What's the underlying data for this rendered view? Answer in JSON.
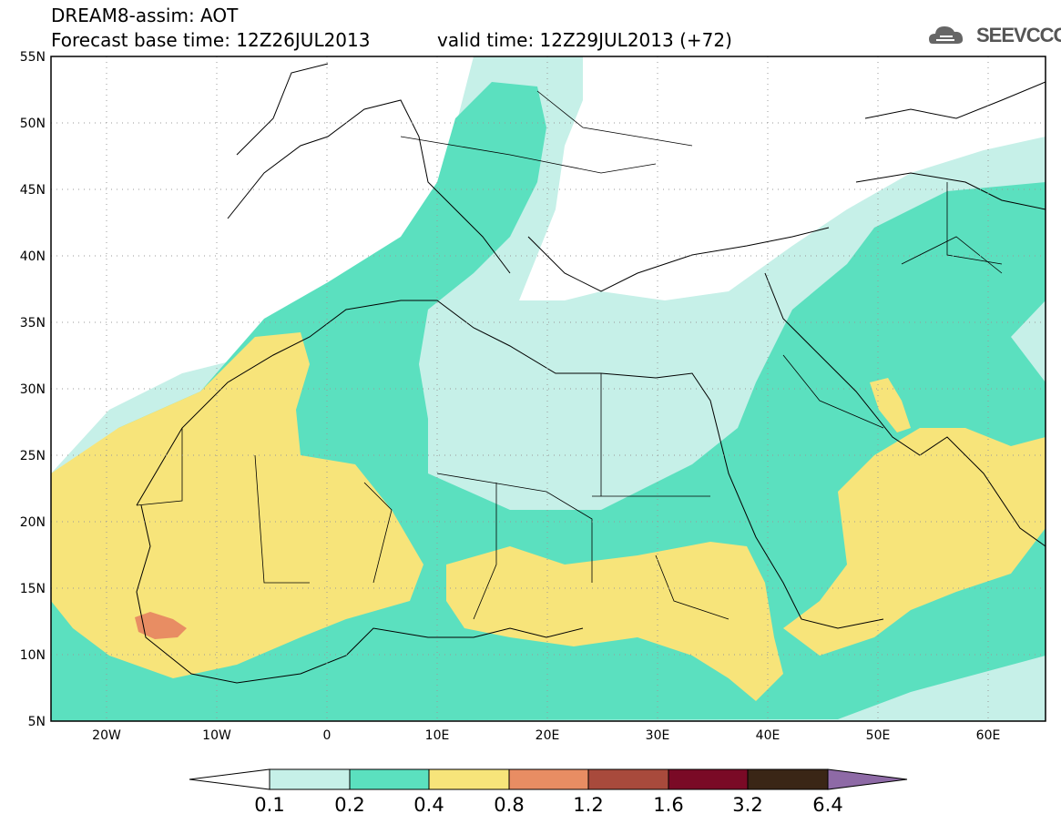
{
  "header": {
    "line1": "DREAM8-assim: AOT",
    "line2": "Forecast base time: 12Z26JUL2013",
    "line3": "valid time: 12Z29JUL2013 (+72)",
    "logo": "SEEVCCC"
  },
  "map": {
    "lat_labels": [
      "55N",
      "50N",
      "45N",
      "40N",
      "35N",
      "30N",
      "25N",
      "20N",
      "15N",
      "10N",
      "5N"
    ],
    "lon_labels": [
      "20W",
      "10W",
      "0",
      "10E",
      "20E",
      "30E",
      "40E",
      "50E",
      "60E"
    ],
    "lat_range": [
      5,
      55
    ],
    "lon_range": [
      -25,
      65
    ],
    "grid": "dotted"
  },
  "colorbar": {
    "labels": [
      "0.1",
      "0.2",
      "0.4",
      "0.8",
      "1.2",
      "1.6",
      "3.2",
      "6.4"
    ],
    "colors": [
      "#ffffff",
      "#c6f0e8",
      "#5be0bf",
      "#f7e47a",
      "#e88d63",
      "#a84a3c",
      "#7a0a26",
      "#3a2616",
      "#8e6aa6"
    ]
  },
  "colors": {
    "low": "#c6f0e8",
    "mid": "#5be0bf",
    "high": "#f7e47a",
    "peak": "#e88d63"
  }
}
